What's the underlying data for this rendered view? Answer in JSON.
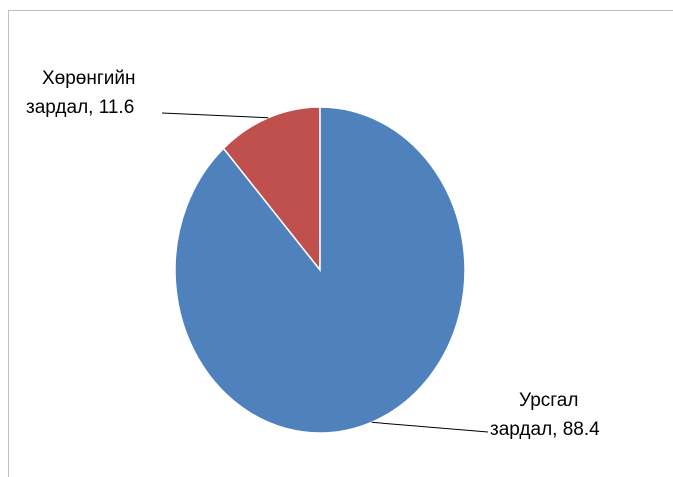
{
  "chart_data": {
    "type": "pie",
    "title": "",
    "slices": [
      {
        "label_line1": "Хөрөнгийн",
        "label_line2": "зардал, 11.6",
        "value": 11.6,
        "color": "#c0504d"
      },
      {
        "label_line1": "Урсгал",
        "label_line2": "зардал, 88.4",
        "value": 88.4,
        "color": "#4f81bd"
      }
    ],
    "start_angle_deg": 0,
    "direction": "counterclockwise",
    "legend": "none",
    "data_labels": "outside with leader lines"
  }
}
